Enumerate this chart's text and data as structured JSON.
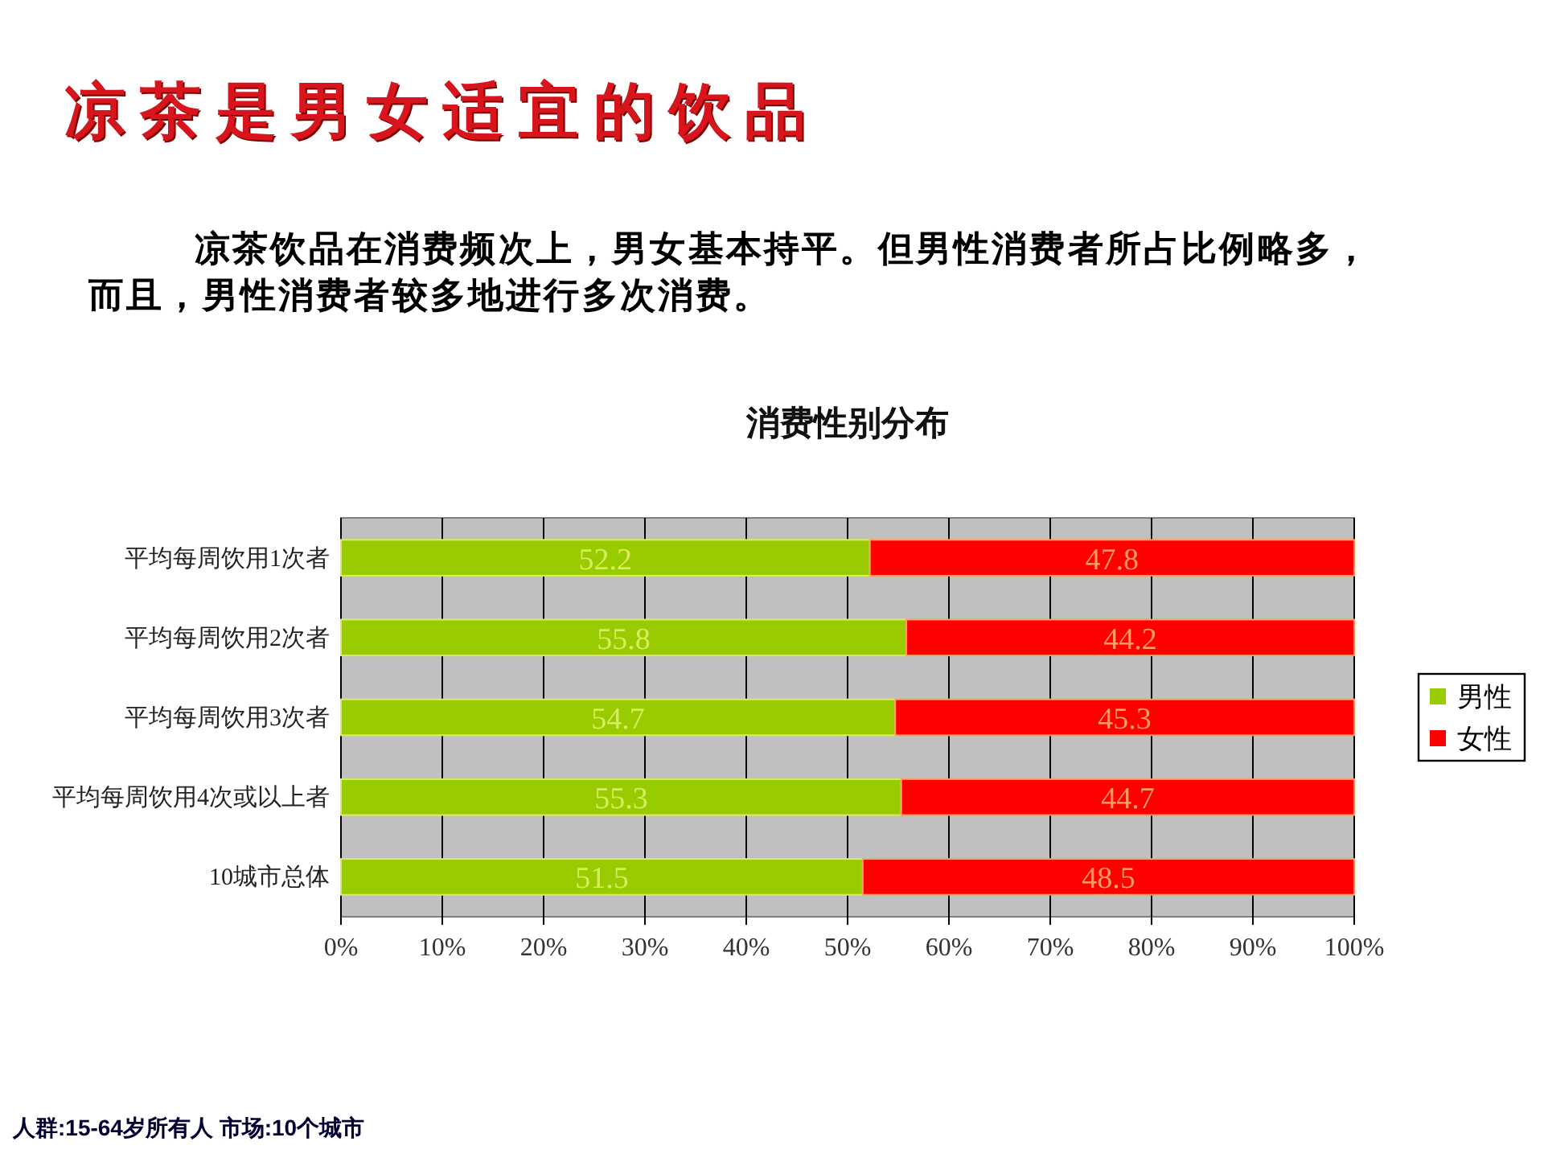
{
  "chart_data": {
    "type": "bar",
    "title": "凉茶是男女适宜的饮品",
    "subtitle": "凉茶饮品在消费频次上，男女基本持平。但男性消费者所占比例略多，而且，男性消费者较多地进行多次消费。",
    "annotations": [
      "消费性别分布",
      "人群:15-64岁所有人 市场:10个城市"
    ],
    "orientation": "horizontal",
    "stacked": true,
    "categories": [
      "平均每周饮用1次者",
      "平均每周饮用2次者",
      "平均每周饮用3次者",
      "平均每周饮用4次或以上者",
      "10城市总体"
    ],
    "series": [
      {
        "name": "男性",
        "color": "#99cc00",
        "values": [
          52.2,
          55.8,
          54.7,
          55.3,
          51.5
        ]
      },
      {
        "name": "女性",
        "color": "#ff0000",
        "values": [
          47.8,
          44.2,
          45.3,
          44.7,
          48.5
        ]
      }
    ],
    "xlim": [
      0,
      100
    ],
    "xticks": [
      {
        "value": 0,
        "label": "0%"
      },
      {
        "value": 10,
        "label": "10%"
      },
      {
        "value": 20,
        "label": "20%"
      },
      {
        "value": 30,
        "label": "30%"
      },
      {
        "value": 40,
        "label": "40%"
      },
      {
        "value": 50,
        "label": "50%"
      },
      {
        "value": 60,
        "label": "60%"
      },
      {
        "value": 70,
        "label": "70%"
      },
      {
        "value": 80,
        "label": "80%"
      },
      {
        "value": 90,
        "label": "90%"
      },
      {
        "value": 100,
        "label": "100%"
      }
    ],
    "grid": "x",
    "legend": "right",
    "data_labels": true
  }
}
